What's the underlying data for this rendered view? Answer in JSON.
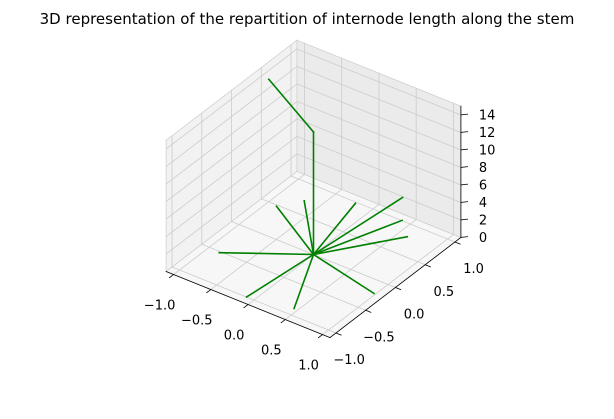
{
  "chart_data": {
    "type": "line3d",
    "title": "3D representation of the repartition of internode length along the stem",
    "xlabel": "",
    "ylabel": "",
    "zlabel": "",
    "xlim": [
      -1.1,
      1.1
    ],
    "ylim": [
      -1.1,
      1.1
    ],
    "zlim": [
      0,
      15
    ],
    "x_ticks": [
      "−1.0",
      "−0.5",
      "0.0",
      "0.5",
      "1.0"
    ],
    "y_ticks": [
      "−1.0",
      "−0.5",
      "0.0",
      "0.5",
      "1.0"
    ],
    "z_ticks": [
      "0",
      "2",
      "4",
      "6",
      "8",
      "10",
      "12",
      "14"
    ],
    "grid": true,
    "line_color": "#008000",
    "stem": [
      {
        "from": [
          0,
          0,
          0
        ],
        "to": [
          0,
          0,
          14
        ]
      },
      {
        "from": [
          0,
          0,
          14
        ],
        "to": [
          -1.0,
          0.5,
          14
        ]
      }
    ],
    "branches": [
      {
        "from": [
          0,
          0,
          0
        ],
        "to": [
          0.62,
          0.8,
          0
        ]
      },
      {
        "from": [
          0,
          0,
          0
        ],
        "to": [
          0.45,
          -0.89,
          0
        ]
      },
      {
        "from": [
          0,
          0,
          0
        ],
        "to": [
          -0.85,
          -0.52,
          0
        ]
      },
      {
        "from": [
          0,
          0,
          0
        ],
        "to": [
          -0.1,
          -1.0,
          0
        ]
      },
      {
        "from": [
          0,
          0,
          0
        ],
        "to": [
          -0.22,
          0.98,
          0
        ]
      },
      {
        "from": [
          0,
          0,
          0
        ],
        "to": [
          0.98,
          -0.21,
          0
        ]
      },
      {
        "from": [
          0,
          0,
          0
        ],
        "to": [
          -0.7,
          0.72,
          0
        ]
      },
      {
        "from": [
          0,
          0,
          0
        ],
        "to": [
          -0.88,
          0.48,
          0
        ]
      },
      {
        "from": [
          0,
          0,
          0
        ],
        "to": [
          0.5,
          0.87,
          3.7
        ]
      },
      {
        "from": [
          0,
          0,
          0
        ],
        "to": [
          0.95,
          0.3,
          5.6
        ]
      }
    ]
  }
}
